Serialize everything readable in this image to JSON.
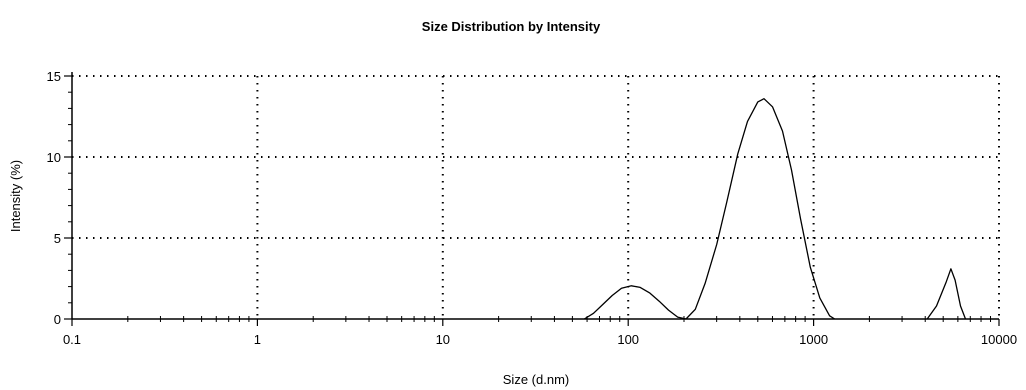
{
  "chart_data": {
    "type": "line",
    "title": "Size Distribution by Intensity",
    "xlabel": "Size (d.nm)",
    "ylabel": "Intensity (%)",
    "x_scale": "log",
    "xlim": [
      0.1,
      10000
    ],
    "ylim": [
      0,
      15
    ],
    "x_ticks": [
      0.1,
      1,
      10,
      100,
      1000,
      10000
    ],
    "x_tick_labels": [
      "0.1",
      "1",
      "10",
      "100",
      "1000",
      "10000"
    ],
    "y_ticks": [
      0,
      5,
      10,
      15
    ],
    "y_tick_labels": [
      "0",
      "5",
      "10",
      "15"
    ],
    "grid": true,
    "line_color": "#000000",
    "segments": [
      {
        "x": [
          58,
          65,
          73,
          82,
          92,
          104,
          116,
          131,
          147,
          165,
          185,
          205
        ],
        "y": [
          0,
          0.35,
          0.9,
          1.45,
          1.9,
          2.05,
          1.95,
          1.6,
          1.1,
          0.55,
          0.12,
          0
        ]
      },
      {
        "x": [
          205,
          230,
          260,
          300,
          340,
          390,
          440,
          500,
          540,
          600,
          680,
          760,
          850,
          960,
          1080,
          1220,
          1300
        ],
        "y": [
          0,
          0.6,
          2.2,
          4.6,
          7.2,
          10.2,
          12.2,
          13.4,
          13.6,
          13.1,
          11.6,
          9.2,
          6.2,
          3.2,
          1.3,
          0.2,
          0
        ]
      },
      {
        "x": [
          4100,
          4600,
          5200,
          5500,
          5800,
          6200,
          6600
        ],
        "y": [
          0,
          0.8,
          2.3,
          3.1,
          2.4,
          0.8,
          0
        ]
      }
    ]
  }
}
